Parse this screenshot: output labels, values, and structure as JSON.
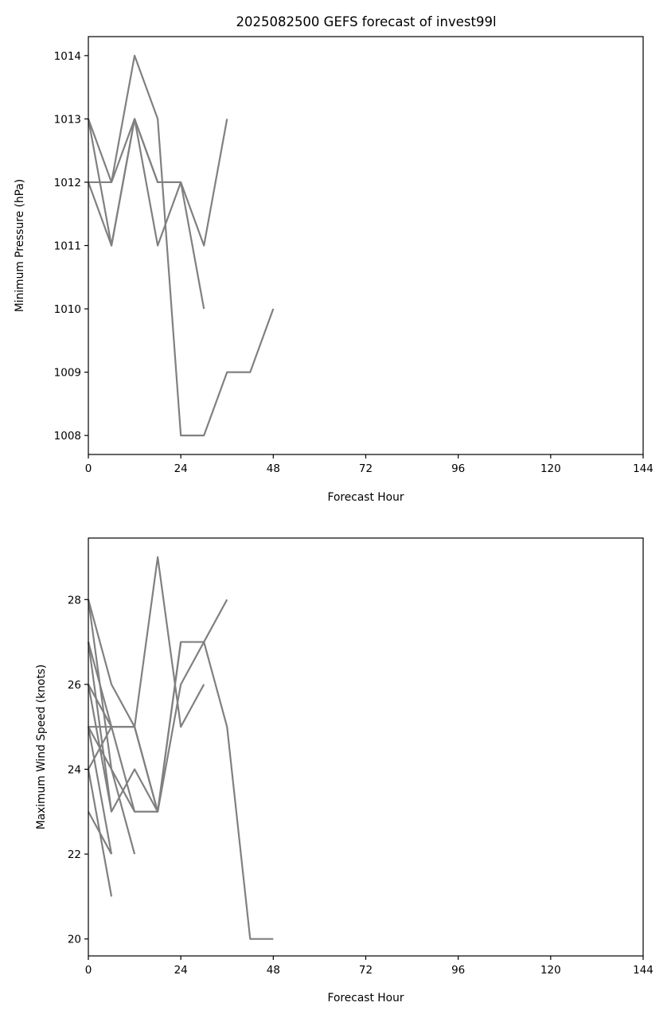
{
  "colors": {
    "series": "#808080",
    "axes": "#000000",
    "background": "#ffffff"
  },
  "chart_data": [
    {
      "type": "line",
      "title": "2025082500 GEFS forecast of invest99l",
      "xlabel": "Forecast Hour",
      "ylabel": "Minimum Pressure (hPa)",
      "xlim": [
        0,
        144
      ],
      "ylim": [
        1007.7,
        1014.3
      ],
      "xticks": [
        0,
        24,
        48,
        72,
        96,
        120,
        144
      ],
      "yticks": [
        1008,
        1009,
        1010,
        1011,
        1012,
        1013,
        1014
      ],
      "grid": false,
      "legend": "none",
      "series": [
        {
          "x": [
            0,
            6,
            12,
            18,
            24,
            30,
            36,
            42,
            48
          ],
          "y": [
            1012,
            1012,
            1014,
            1013,
            1008,
            1008,
            1009,
            1009,
            1010
          ]
        },
        {
          "x": [
            0,
            6,
            12,
            18,
            24,
            30,
            36
          ],
          "y": [
            1013,
            1012,
            1013,
            1012,
            1012,
            1011,
            1013
          ]
        },
        {
          "x": [
            0,
            6,
            12,
            18,
            24,
            30
          ],
          "y": [
            1013,
            1011,
            1013,
            1011,
            1012,
            1010
          ]
        },
        {
          "x": [
            0,
            6,
            12,
            18,
            24
          ],
          "y": [
            1012,
            1011,
            1013,
            1012,
            1012
          ]
        }
      ]
    },
    {
      "type": "line",
      "title": "",
      "xlabel": "Forecast Hour",
      "ylabel": "Maximum Wind Speed (knots)",
      "xlim": [
        0,
        144
      ],
      "ylim": [
        19.6,
        29.45
      ],
      "xticks": [
        0,
        24,
        48,
        72,
        96,
        120,
        144
      ],
      "yticks": [
        20,
        22,
        24,
        26,
        28
      ],
      "grid": false,
      "legend": "none",
      "series": [
        {
          "x": [
            0,
            6,
            12,
            18,
            24,
            30,
            36,
            42,
            48
          ],
          "y": [
            25,
            25,
            25,
            23,
            27,
            27,
            25,
            20,
            20
          ]
        },
        {
          "x": [
            0,
            6,
            12,
            18,
            24,
            30,
            36
          ],
          "y": [
            28,
            26,
            25,
            23,
            26,
            27,
            28
          ]
        },
        {
          "x": [
            0,
            6,
            12,
            18,
            24,
            30
          ],
          "y": [
            26,
            25,
            25,
            29,
            25,
            26
          ]
        },
        {
          "x": [
            0,
            6,
            12,
            18,
            24
          ],
          "y": [
            27,
            23,
            24,
            23,
            27
          ]
        },
        {
          "x": [
            0,
            6,
            12,
            18
          ],
          "y": [
            24,
            25,
            23,
            23
          ]
        },
        {
          "x": [
            0,
            6,
            12
          ],
          "y": [
            28,
            24,
            22
          ]
        },
        {
          "x": [
            0,
            6,
            12
          ],
          "y": [
            25,
            24,
            23
          ]
        },
        {
          "x": [
            0,
            6
          ],
          "y": [
            27,
            25
          ]
        },
        {
          "x": [
            0,
            6
          ],
          "y": [
            26,
            23
          ]
        },
        {
          "x": [
            0,
            6
          ],
          "y": [
            23,
            22
          ]
        },
        {
          "x": [
            0,
            6
          ],
          "y": [
            25,
            22
          ]
        },
        {
          "x": [
            0,
            6
          ],
          "y": [
            24,
            21
          ]
        }
      ]
    }
  ]
}
